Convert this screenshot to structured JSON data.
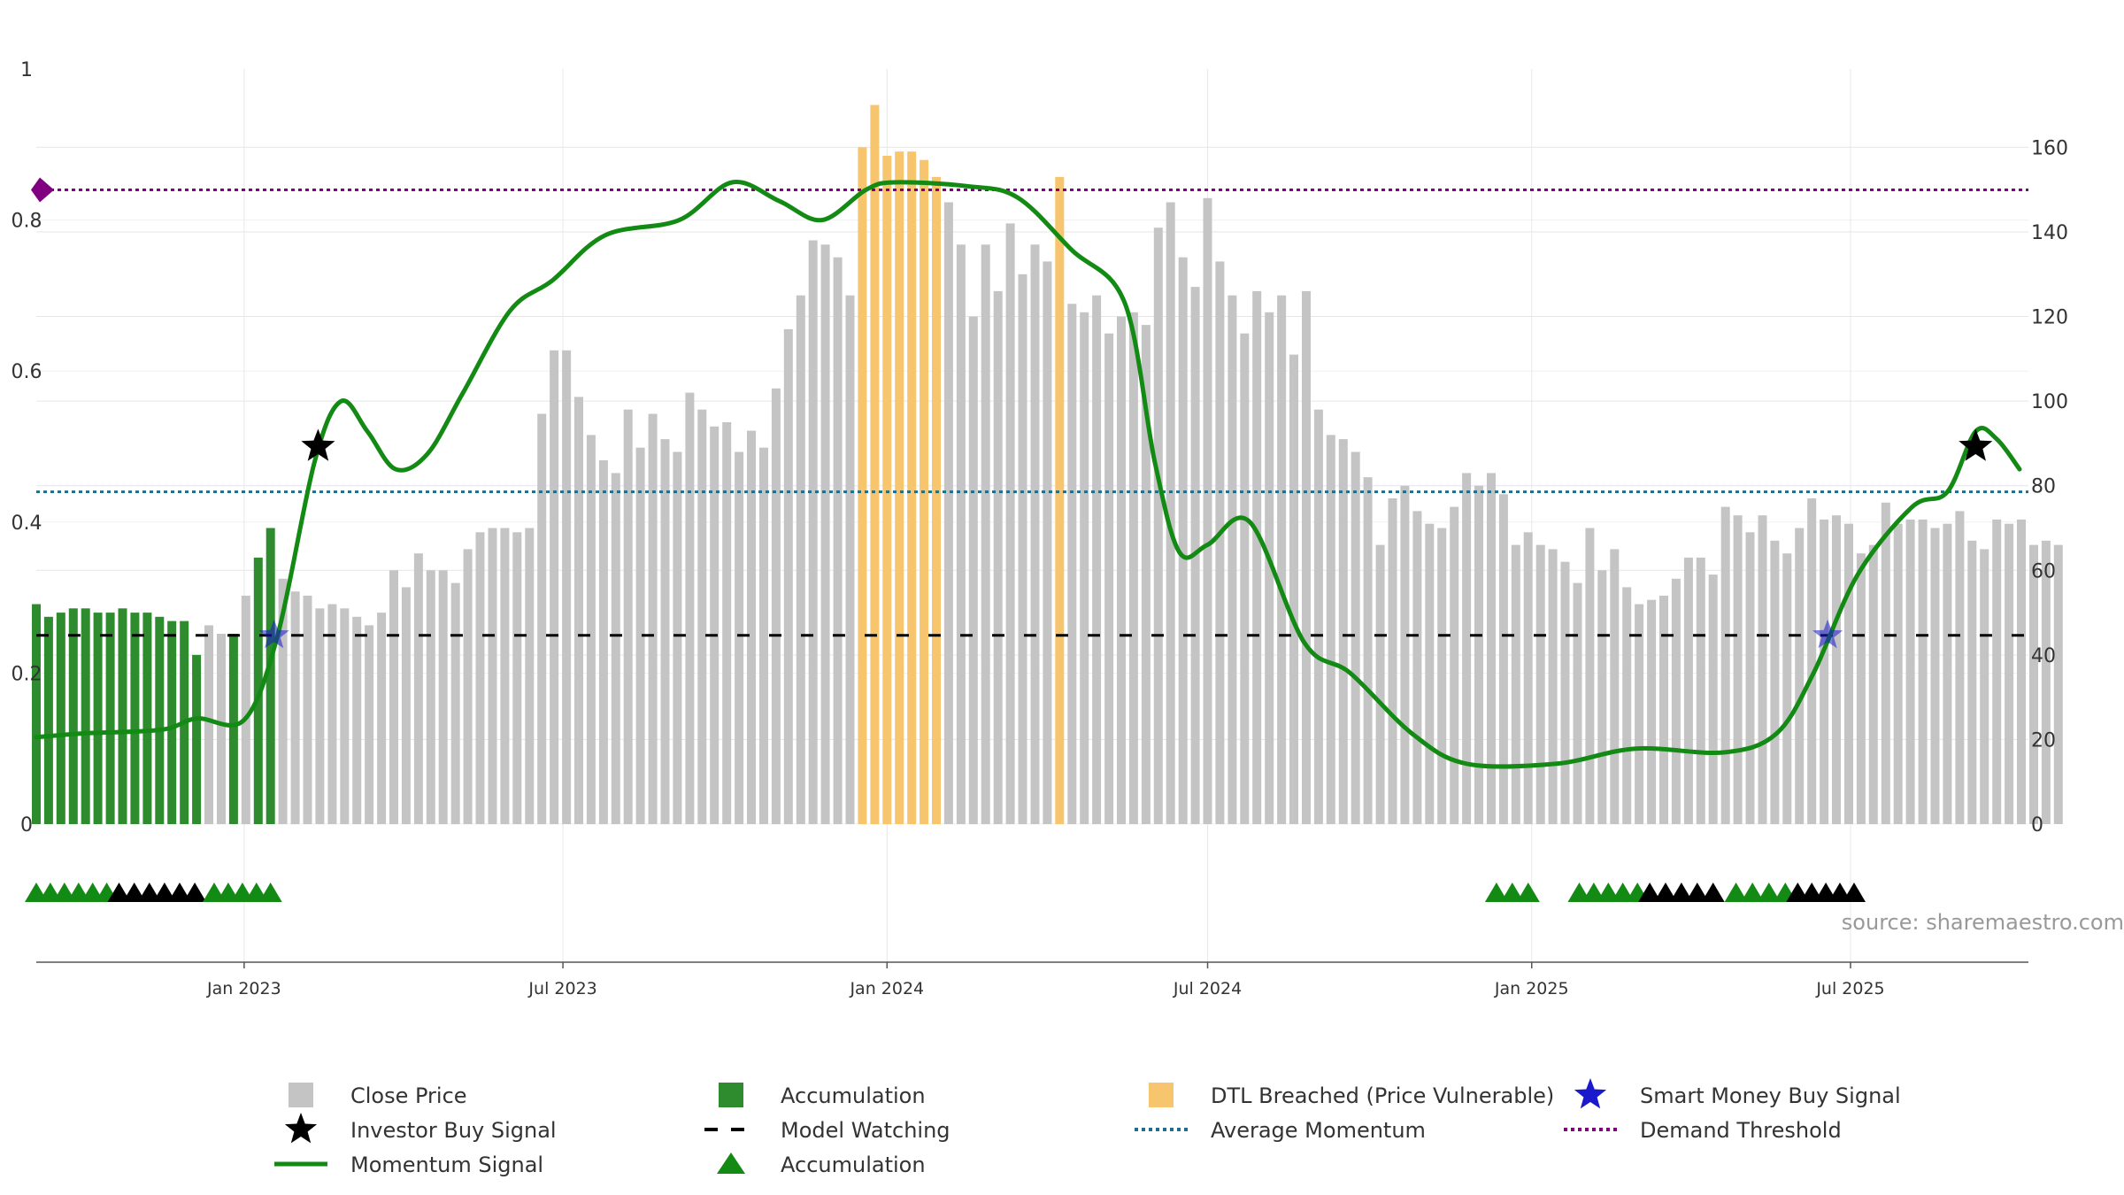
{
  "chart_data": {
    "type": "bar",
    "source_text": "source: sharemaestro.com",
    "colors": {
      "close_price": "#c4c4c4",
      "accumulation": "#2e8b2e",
      "dtl_breached": "#f8c56f",
      "momentum": "#138a13",
      "model_watching": "#000000",
      "average_momentum": "#1c6e8c",
      "demand_threshold": "#800080",
      "smart_money": "#1a1acc",
      "investor_buy": "#000000",
      "triangle_green": "#138a13",
      "triangle_black": "#000000"
    },
    "left_axis": {
      "ylim": [
        0,
        1
      ],
      "ticks": [
        0,
        0.2,
        0.4,
        0.6,
        0.8
      ],
      "top_label": "1"
    },
    "right_axis": {
      "ylim": [
        0,
        178.5
      ],
      "ticks": [
        0,
        20,
        40,
        60,
        80,
        100,
        120,
        140,
        160
      ]
    },
    "x_axis": {
      "start": "2022-09-05",
      "end": "2025-10-10",
      "ticks": [
        {
          "label": "Jan 2023",
          "date": "2023-01-01"
        },
        {
          "label": "Jul 2023",
          "date": "2023-07-01"
        },
        {
          "label": "Jan 2024",
          "date": "2024-01-01"
        },
        {
          "label": "Jul 2024",
          "date": "2024-07-01"
        },
        {
          "label": "Jan 2025",
          "date": "2025-01-01"
        },
        {
          "label": "Jul 2025",
          "date": "2025-07-01"
        }
      ]
    },
    "price_start_date": "2022-09-05",
    "price_interval_days": 7,
    "close_price": [
      52,
      49,
      50,
      51,
      51,
      50,
      50,
      51,
      50,
      50,
      49,
      48,
      48,
      40,
      47,
      45,
      45,
      54,
      63,
      70,
      58,
      55,
      54,
      51,
      52,
      51,
      49,
      47,
      50,
      60,
      56,
      64,
      60,
      60,
      57,
      65,
      69,
      70,
      70,
      69,
      70,
      97,
      112,
      112,
      101,
      92,
      86,
      83,
      98,
      89,
      97,
      91,
      88,
      102,
      98,
      94,
      95,
      88,
      93,
      89,
      103,
      117,
      125,
      138,
      137,
      134,
      125,
      160,
      170,
      158,
      159,
      159,
      157,
      153,
      147,
      137,
      120,
      137,
      126,
      142,
      130,
      137,
      133,
      153,
      123,
      121,
      125,
      116,
      120,
      121,
      118,
      141,
      147,
      134,
      127,
      148,
      133,
      125,
      116,
      126,
      121,
      125,
      111,
      126,
      98,
      92,
      91,
      88,
      82,
      66,
      77,
      80,
      74,
      71,
      70,
      75,
      83,
      80,
      83,
      78,
      66,
      69,
      66,
      65,
      62,
      57,
      70,
      60,
      65,
      56,
      52,
      53,
      54,
      58,
      63,
      63,
      59,
      75,
      73,
      69,
      73,
      67,
      64,
      70,
      77,
      72,
      73,
      71,
      64,
      66,
      76,
      71,
      72,
      72,
      70,
      71,
      74,
      67,
      65,
      72,
      71,
      72,
      66,
      67,
      66
    ],
    "bar_category": [
      "A",
      "A",
      "A",
      "A",
      "A",
      "A",
      "A",
      "A",
      "A",
      "A",
      "A",
      "A",
      "A",
      "A",
      "P",
      "P",
      "A",
      "P",
      "A",
      "A",
      "P",
      "P",
      "P",
      "P",
      "P",
      "P",
      "P",
      "P",
      "P",
      "P",
      "P",
      "P",
      "P",
      "P",
      "P",
      "P",
      "P",
      "P",
      "P",
      "P",
      "P",
      "P",
      "P",
      "P",
      "P",
      "P",
      "P",
      "P",
      "P",
      "P",
      "P",
      "P",
      "P",
      "P",
      "P",
      "P",
      "P",
      "P",
      "P",
      "P",
      "P",
      "P",
      "P",
      "P",
      "P",
      "P",
      "P",
      "D",
      "D",
      "D",
      "D",
      "D",
      "D",
      "D",
      "P",
      "P",
      "P",
      "P",
      "P",
      "P",
      "P",
      "P",
      "P",
      "D",
      "P",
      "P",
      "P",
      "P",
      "P",
      "P",
      "P",
      "P",
      "P",
      "P",
      "P",
      "P",
      "P",
      "P",
      "P",
      "P",
      "P",
      "P",
      "P",
      "P",
      "P",
      "P",
      "P",
      "P",
      "P",
      "P",
      "P",
      "P",
      "P",
      "P",
      "P",
      "P",
      "P",
      "P",
      "P",
      "P",
      "P",
      "P",
      "P",
      "P",
      "P",
      "P",
      "P",
      "P",
      "P",
      "P",
      "P",
      "P",
      "P",
      "P",
      "P",
      "P",
      "P",
      "P",
      "P",
      "P",
      "P",
      "P",
      "P",
      "P",
      "P",
      "P",
      "P",
      "P",
      "P",
      "P",
      "P",
      "P",
      "P",
      "P",
      "P",
      "P",
      "P",
      "P",
      "P",
      "P",
      "P",
      "P",
      "P",
      "P",
      "P",
      "P",
      "P",
      "P",
      "P"
    ],
    "momentum_signal": [
      [
        "2022-09-05",
        0.115
      ],
      [
        "2022-10-01",
        0.12
      ],
      [
        "2022-11-15",
        0.125
      ],
      [
        "2022-12-05",
        0.14
      ],
      [
        "2023-01-01",
        0.138
      ],
      [
        "2023-01-20",
        0.25
      ],
      [
        "2023-02-10",
        0.48
      ],
      [
        "2023-02-25",
        0.56
      ],
      [
        "2023-03-12",
        0.52
      ],
      [
        "2023-03-28",
        0.47
      ],
      [
        "2023-04-15",
        0.49
      ],
      [
        "2023-05-05",
        0.57
      ],
      [
        "2023-06-01",
        0.68
      ],
      [
        "2023-06-25",
        0.72
      ],
      [
        "2023-07-25",
        0.78
      ],
      [
        "2023-09-05",
        0.8
      ],
      [
        "2023-10-05",
        0.85
      ],
      [
        "2023-11-01",
        0.825
      ],
      [
        "2023-11-25",
        0.8
      ],
      [
        "2023-12-20",
        0.84
      ],
      [
        "2024-01-05",
        0.85
      ],
      [
        "2024-02-15",
        0.845
      ],
      [
        "2024-03-15",
        0.83
      ],
      [
        "2024-04-15",
        0.76
      ],
      [
        "2024-05-15",
        0.69
      ],
      [
        "2024-06-01",
        0.48
      ],
      [
        "2024-06-15",
        0.36
      ],
      [
        "2024-07-01",
        0.37
      ],
      [
        "2024-07-25",
        0.4
      ],
      [
        "2024-08-25",
        0.24
      ],
      [
        "2024-09-20",
        0.2
      ],
      [
        "2024-10-25",
        0.12
      ],
      [
        "2024-11-25",
        0.08
      ],
      [
        "2025-01-15",
        0.08
      ],
      [
        "2025-03-01",
        0.1
      ],
      [
        "2025-04-20",
        0.095
      ],
      [
        "2025-05-20",
        0.12
      ],
      [
        "2025-06-10",
        0.2
      ],
      [
        "2025-07-05",
        0.33
      ],
      [
        "2025-08-05",
        0.42
      ],
      [
        "2025-08-25",
        0.44
      ],
      [
        "2025-09-10",
        0.52
      ],
      [
        "2025-09-22",
        0.51
      ],
      [
        "2025-10-05",
        0.47
      ]
    ],
    "average_momentum": 0.44,
    "demand_threshold": 0.84,
    "model_watching": 0.25,
    "investor_buy_signals": [
      {
        "date": "2023-02-12",
        "value": 0.5
      },
      {
        "date": "2025-09-10",
        "value": 0.5
      }
    ],
    "smart_money_signals": [
      {
        "date": "2023-01-18",
        "value": 0.25
      },
      {
        "date": "2025-06-18",
        "value": 0.25
      }
    ],
    "accumulation_markers": [
      {
        "start": "2022-09-05",
        "end": "2022-10-15",
        "color": "green"
      },
      {
        "start": "2022-10-22",
        "end": "2022-12-04",
        "color": "black"
      },
      {
        "start": "2022-12-15",
        "end": "2023-01-16",
        "color": "green"
      },
      {
        "start": "2024-12-12",
        "end": "2024-12-30",
        "color": "green"
      },
      {
        "start": "2025-01-28",
        "end": "2025-03-02",
        "color": "green"
      },
      {
        "start": "2025-03-09",
        "end": "2025-04-14",
        "color": "black"
      },
      {
        "start": "2025-04-27",
        "end": "2025-05-25",
        "color": "green"
      },
      {
        "start": "2025-06-01",
        "end": "2025-07-03",
        "color": "black"
      }
    ],
    "legend": [
      {
        "label": "Close Price",
        "symbol": "square",
        "color": "#c4c4c4"
      },
      {
        "label": "Investor Buy Signal",
        "symbol": "star",
        "color": "#000000"
      },
      {
        "label": "Momentum Signal",
        "symbol": "line",
        "color": "#138a13"
      },
      {
        "label": "Accumulation",
        "symbol": "square",
        "color": "#2e8b2e"
      },
      {
        "label": "Model Watching",
        "symbol": "dashed",
        "color": "#000000"
      },
      {
        "label": "Accumulation",
        "symbol": "triangle",
        "color": "#138a13"
      },
      {
        "label": "DTL Breached (Price Vulnerable)",
        "symbol": "square",
        "color": "#f8c56f"
      },
      {
        "label": "Average Momentum",
        "symbol": "dotted",
        "color": "#1c6e8c"
      },
      {
        "label": "Smart Money Buy Signal",
        "symbol": "star",
        "color": "#1a1acc"
      },
      {
        "label": "Demand Threshold",
        "symbol": "dotted",
        "color": "#800080"
      }
    ]
  }
}
